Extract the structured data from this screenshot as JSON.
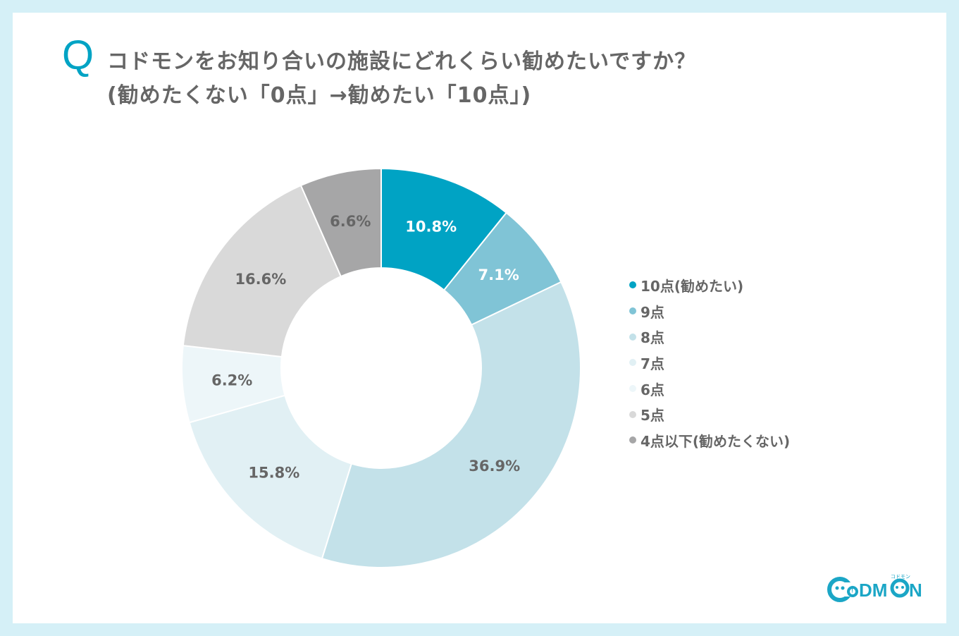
{
  "title": {
    "q_mark": "Q",
    "line1": "コドモンをお知り合いの施設にどれくらい勧めたいですか？",
    "line2": "(勧めたくない「0点」→勧めたい「10点」)"
  },
  "chart_data": {
    "type": "pie",
    "variant": "donut",
    "title": "コドモンをお知り合いの施設にどれくらい勧めたいですか？ (勧めたくない「0点」→勧めたい「10点」)",
    "categories": [
      "10点(勧めたい)",
      "9点",
      "8点",
      "7点",
      "6点",
      "5点",
      "4点以下(勧めたくない)"
    ],
    "values": [
      10.8,
      7.1,
      36.9,
      15.8,
      6.2,
      16.6,
      6.6
    ],
    "data_labels": [
      "10.8%",
      "7.1%",
      "36.9%",
      "15.8%",
      "6.2%",
      "16.6%",
      "6.6%"
    ],
    "colors": [
      "#00a3c4",
      "#80c4d6",
      "#c3e1e9",
      "#e1f0f4",
      "#edf6f9",
      "#d9d9d9",
      "#a6a6a7"
    ],
    "label_colors": [
      "#ffffff",
      "#ffffff",
      "#666666",
      "#666666",
      "#666666",
      "#666666",
      "#666666"
    ],
    "unit": "%",
    "legend_position": "right",
    "start": "top, clockwise"
  },
  "logo": {
    "text": "CODMON",
    "ruby": "コドモン"
  }
}
